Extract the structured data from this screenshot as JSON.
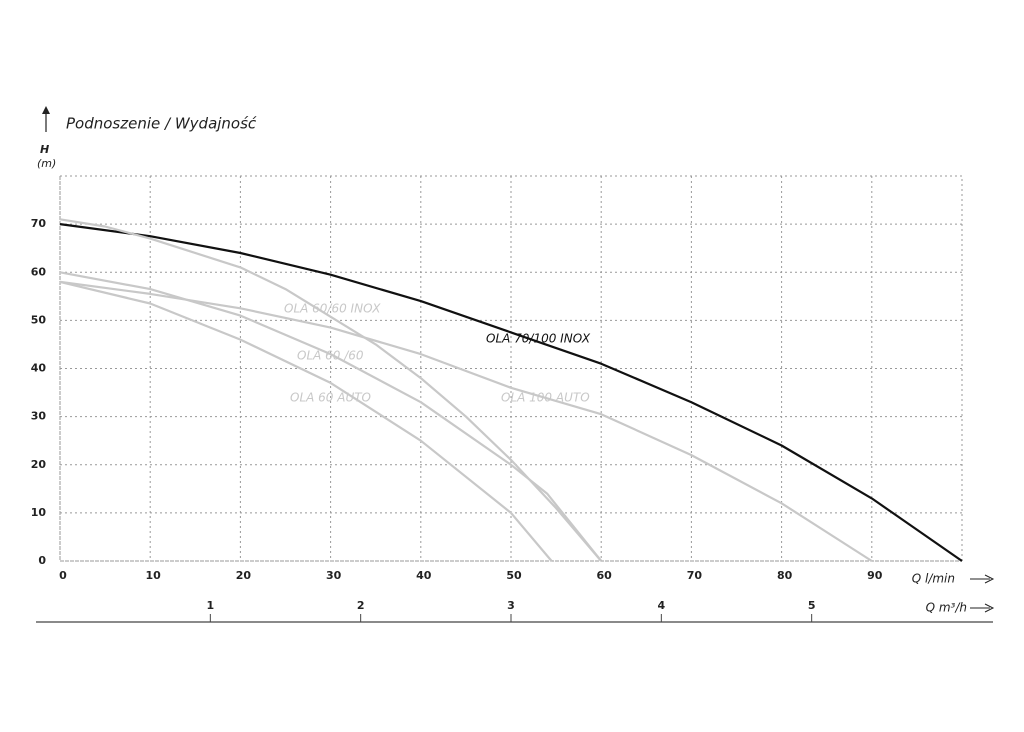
{
  "chart_data": {
    "type": "line",
    "title": "Podnoszenie / Wydajność",
    "ylabel": "H",
    "yunit": "(m)",
    "xlabel": "Q l/min",
    "x2label": "Q m³/h",
    "xlim": [
      0,
      100
    ],
    "xticks": [
      0,
      10,
      20,
      30,
      40,
      50,
      60,
      70,
      80,
      90
    ],
    "ylim": [
      0,
      80
    ],
    "yticks": [
      0,
      10,
      20,
      30,
      40,
      50,
      60,
      70
    ],
    "x2lim": [
      0,
      6
    ],
    "x2ticks": [
      1,
      2,
      3,
      4,
      5
    ],
    "grid": true,
    "series": [
      {
        "name": "OLA 70/100 INOX",
        "color": "#111111",
        "x": [
          0,
          10,
          20,
          30,
          40,
          50,
          60,
          70,
          80,
          90,
          100
        ],
        "values": [
          70,
          67.5,
          64,
          59.5,
          54,
          47.5,
          41,
          33,
          24,
          13,
          0
        ]
      },
      {
        "name": "OLA 60/60 INOX",
        "color": "#c8c8c8",
        "x": [
          0,
          5,
          10,
          20,
          25,
          35,
          40,
          45,
          50,
          55,
          60
        ],
        "values": [
          71,
          69.5,
          67,
          61,
          56.5,
          45,
          38,
          30,
          21,
          11,
          0
        ]
      },
      {
        "name": "OLA 60 /60",
        "color": "#c8c8c8",
        "x": [
          0,
          10,
          20,
          30,
          40,
          50,
          54,
          60
        ],
        "values": [
          60,
          56.5,
          51,
          43,
          33,
          20,
          14,
          0
        ]
      },
      {
        "name": "OLA 60 AUTO",
        "color": "#c8c8c8",
        "x": [
          0,
          10,
          20,
          30,
          40,
          50,
          54.5
        ],
        "values": [
          58,
          53.5,
          46,
          37,
          25,
          10,
          0
        ]
      },
      {
        "name": "OLA 100 AUTO",
        "color": "#c8c8c8",
        "x": [
          0,
          10,
          20,
          30,
          40,
          50,
          60,
          70,
          80,
          90
        ],
        "values": [
          58,
          55.5,
          52.5,
          48.5,
          43,
          36,
          30.5,
          22,
          12,
          0
        ]
      }
    ]
  }
}
